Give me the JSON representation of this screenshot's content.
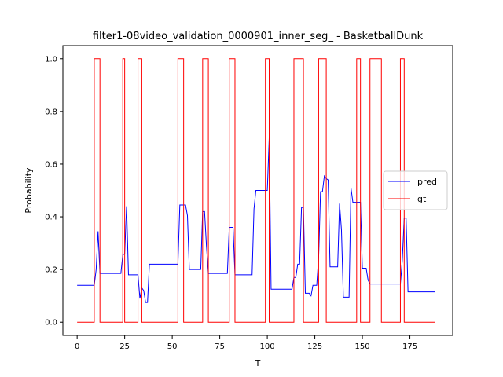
{
  "chart_data": {
    "type": "line",
    "title": "filter1-08video_validation_0000901_inner_seg_ - BasketballDunk",
    "xlabel": "T",
    "ylabel": "Probability",
    "xlim": [
      -7.5,
      197.5
    ],
    "ylim": [
      -0.05,
      1.05
    ],
    "xticks": [
      0,
      25,
      50,
      75,
      100,
      125,
      150,
      175
    ],
    "yticks": [
      0.0,
      0.2,
      0.4,
      0.6,
      0.8,
      1.0
    ],
    "ytick_labels": [
      "0.0",
      "0.2",
      "0.4",
      "0.6",
      "0.8",
      "1.0"
    ],
    "grid": false,
    "legend": "center-right",
    "series": [
      {
        "name": "pred",
        "color": "#0000ff",
        "points": [
          [
            0,
            0.14
          ],
          [
            9,
            0.14
          ],
          [
            10,
            0.2
          ],
          [
            11,
            0.345
          ],
          [
            12,
            0.185
          ],
          [
            23,
            0.185
          ],
          [
            24,
            0.255
          ],
          [
            25,
            0.26
          ],
          [
            26,
            0.44
          ],
          [
            27,
            0.18
          ],
          [
            32,
            0.18
          ],
          [
            33,
            0.09
          ],
          [
            34,
            0.13
          ],
          [
            35,
            0.12
          ],
          [
            36,
            0.075
          ],
          [
            37,
            0.075
          ],
          [
            38,
            0.22
          ],
          [
            53,
            0.22
          ],
          [
            54,
            0.445
          ],
          [
            57,
            0.445
          ],
          [
            58,
            0.405
          ],
          [
            59,
            0.2
          ],
          [
            65,
            0.2
          ],
          [
            66,
            0.42
          ],
          [
            67,
            0.42
          ],
          [
            68,
            0.29
          ],
          [
            69,
            0.185
          ],
          [
            79,
            0.185
          ],
          [
            80,
            0.36
          ],
          [
            82,
            0.36
          ],
          [
            83,
            0.18
          ],
          [
            92,
            0.18
          ],
          [
            93,
            0.43
          ],
          [
            94,
            0.5
          ],
          [
            100,
            0.5
          ],
          [
            101,
            0.7
          ],
          [
            102,
            0.125
          ],
          [
            113,
            0.125
          ],
          [
            114,
            0.17
          ],
          [
            115,
            0.17
          ],
          [
            116,
            0.22
          ],
          [
            117,
            0.22
          ],
          [
            118,
            0.435
          ],
          [
            119,
            0.435
          ],
          [
            120,
            0.11
          ],
          [
            122,
            0.11
          ],
          [
            123,
            0.1
          ],
          [
            124,
            0.14
          ],
          [
            126,
            0.14
          ],
          [
            127,
            0.245
          ],
          [
            128,
            0.495
          ],
          [
            129,
            0.495
          ],
          [
            130,
            0.555
          ],
          [
            131,
            0.545
          ],
          [
            132,
            0.54
          ],
          [
            133,
            0.21
          ],
          [
            137,
            0.21
          ],
          [
            138,
            0.45
          ],
          [
            139,
            0.35
          ],
          [
            140,
            0.095
          ],
          [
            143,
            0.095
          ],
          [
            144,
            0.51
          ],
          [
            145,
            0.455
          ],
          [
            149,
            0.455
          ],
          [
            150,
            0.205
          ],
          [
            152,
            0.205
          ],
          [
            153,
            0.16
          ],
          [
            154,
            0.145
          ],
          [
            170,
            0.145
          ],
          [
            171,
            0.235
          ],
          [
            172,
            0.395
          ],
          [
            173,
            0.395
          ],
          [
            174,
            0.115
          ],
          [
            188,
            0.115
          ]
        ]
      },
      {
        "name": "gt",
        "color": "#ff0000",
        "points": [
          [
            0,
            0
          ],
          [
            9,
            0
          ],
          [
            9,
            1
          ],
          [
            12,
            1
          ],
          [
            12,
            0
          ],
          [
            24,
            0
          ],
          [
            24,
            1
          ],
          [
            25,
            1
          ],
          [
            25,
            0
          ],
          [
            32,
            0
          ],
          [
            32,
            1
          ],
          [
            34,
            1
          ],
          [
            34,
            0
          ],
          [
            53,
            0
          ],
          [
            53,
            1
          ],
          [
            56,
            1
          ],
          [
            56,
            0
          ],
          [
            66,
            0
          ],
          [
            66,
            1
          ],
          [
            69,
            1
          ],
          [
            69,
            0
          ],
          [
            80,
            0
          ],
          [
            80,
            1
          ],
          [
            83,
            1
          ],
          [
            83,
            0
          ],
          [
            99,
            0
          ],
          [
            99,
            1
          ],
          [
            101,
            1
          ],
          [
            101,
            0
          ],
          [
            114,
            0
          ],
          [
            114,
            1
          ],
          [
            119,
            1
          ],
          [
            119,
            0
          ],
          [
            127,
            0
          ],
          [
            127,
            1
          ],
          [
            131,
            1
          ],
          [
            131,
            0
          ],
          [
            147,
            0
          ],
          [
            147,
            1
          ],
          [
            149,
            1
          ],
          [
            149,
            0
          ],
          [
            154,
            0
          ],
          [
            154,
            1
          ],
          [
            160,
            1
          ],
          [
            160,
            0
          ],
          [
            170,
            0
          ],
          [
            170,
            1
          ],
          [
            172,
            1
          ],
          [
            172,
            0
          ],
          [
            188,
            0
          ]
        ]
      }
    ]
  }
}
